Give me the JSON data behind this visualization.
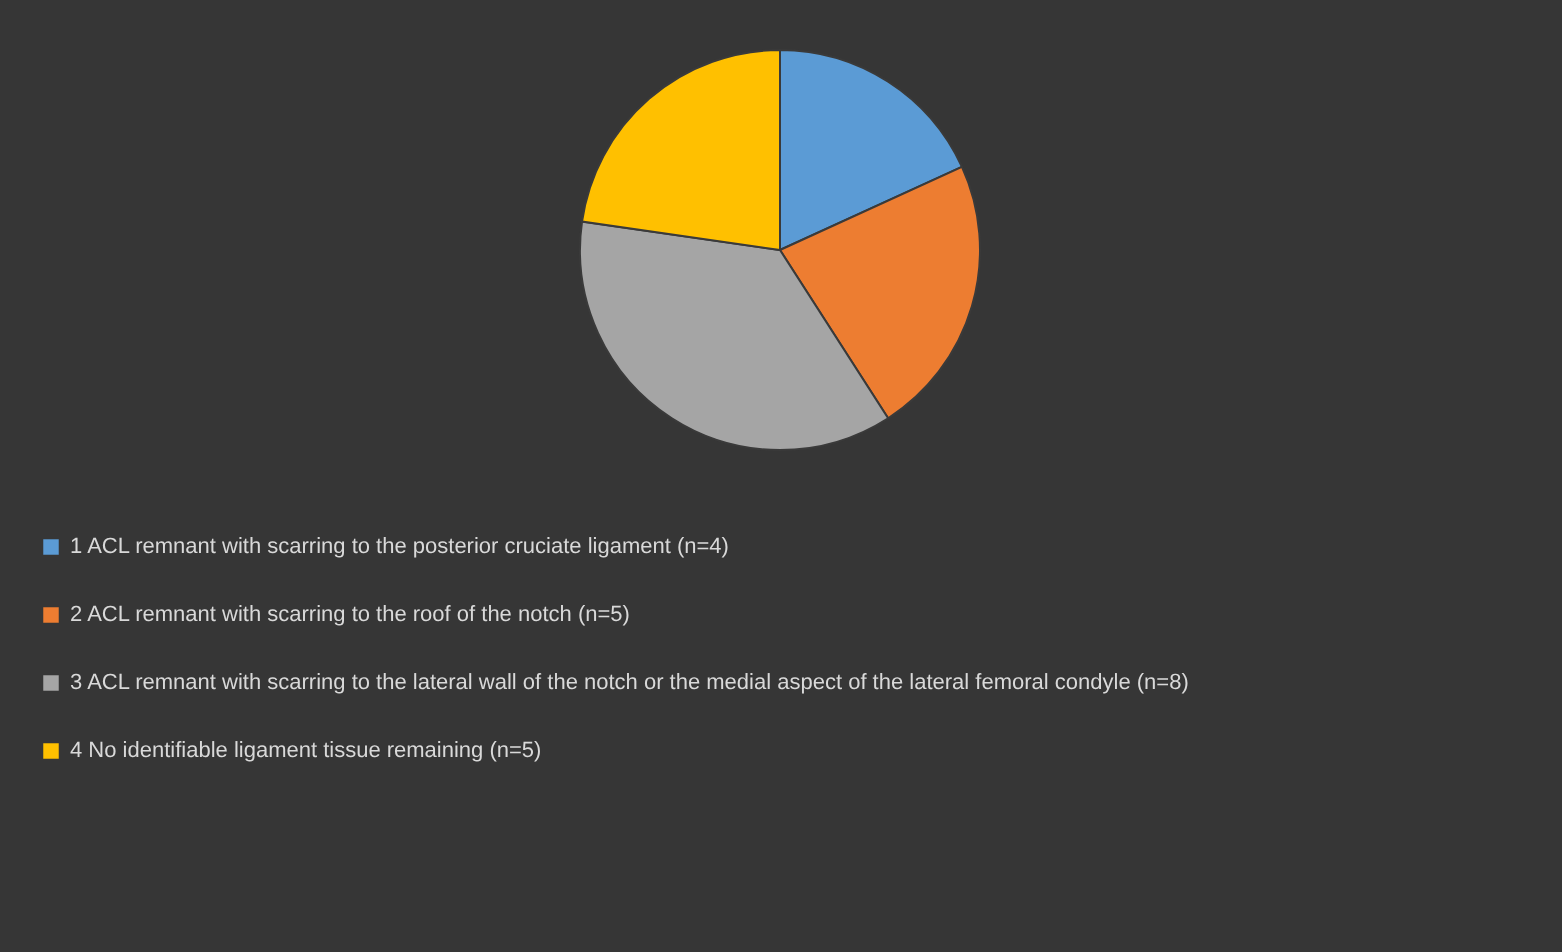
{
  "chart_data": {
    "type": "pie",
    "categories": [
      "1 ACL remnant with scarring to the posterior cruciate ligament (n=4)",
      "2 ACL remnant with scarring to the roof of the notch (n=5)",
      "3 ACL remnant with scarring to the lateral wall of the notch or the medial aspect of the lateral femoral condyle (n=8)",
      "4 No identifiable ligament tissue remaining  (n=5)"
    ],
    "values": [
      4,
      5,
      8,
      5
    ],
    "colors": [
      "#5b9bd5",
      "#ed7d31",
      "#a5a5a5",
      "#ffc000"
    ],
    "legend": "bottom"
  }
}
